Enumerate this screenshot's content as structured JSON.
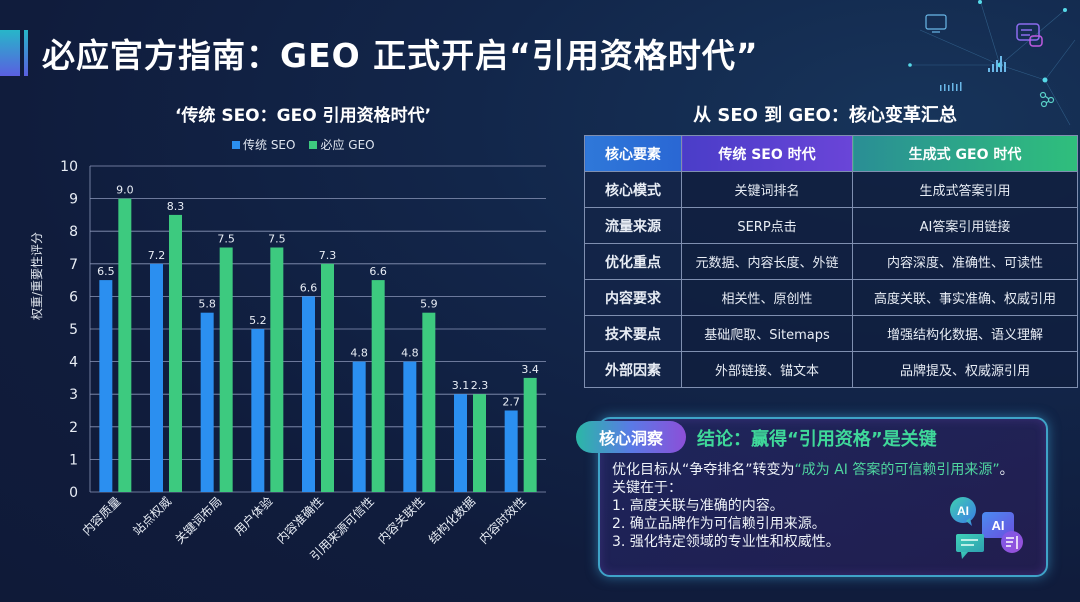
{
  "page": {
    "title": "必应官方指南：GEO 正式开启“引用资格时代”"
  },
  "chart_data": {
    "type": "bar",
    "title": "‘传统 SEO：GEO 引用资格时代’",
    "xlabel": "",
    "ylabel": "权重/重要性评分",
    "ylim": [
      0,
      10
    ],
    "yticks": [
      0,
      1,
      2,
      3,
      4,
      5,
      6,
      7,
      8,
      9,
      10
    ],
    "grid": true,
    "legend_position": "top",
    "categories": [
      "内容质量",
      "站点权威",
      "关键词布局",
      "用户体验",
      "内容准确性",
      "引用来源可信性",
      "内容关联性",
      "结构化数据",
      "内容时效性"
    ],
    "series": [
      {
        "name": "传统 SEO",
        "color": "#2b8ff0",
        "values": [
          6.5,
          7.2,
          5.8,
          5.2,
          6.6,
          4.8,
          4.8,
          3.1,
          2.7
        ],
        "drawn_heights": [
          6.5,
          7.0,
          5.5,
          5.0,
          6.0,
          4.0,
          4.0,
          3.0,
          2.5
        ]
      },
      {
        "name": "必应 GEO",
        "color": "#3dca7f",
        "values": [
          9.0,
          8.3,
          7.5,
          7.5,
          7.3,
          6.6,
          5.9,
          2.3,
          3.4
        ],
        "drawn_heights": [
          9.0,
          8.5,
          7.5,
          7.5,
          7.0,
          6.5,
          5.5,
          3.0,
          3.5
        ]
      }
    ],
    "data_labels": [
      [
        "6.5",
        "9.0"
      ],
      [
        "7.2",
        "8.3"
      ],
      [
        "5.8",
        "7.5"
      ],
      [
        "5.2",
        "7.5"
      ],
      [
        "6.6",
        "7.3"
      ],
      [
        "4.8",
        "6.6"
      ],
      [
        "4.8",
        "5.9"
      ],
      [
        "3.1",
        "2.3"
      ],
      [
        "2.7",
        "3.4"
      ]
    ]
  },
  "table": {
    "title": "从 SEO 到 GEO：核心变革汇总",
    "headers": [
      "核心要素",
      "传统 SEO 时代",
      "生成式 GEO 时代"
    ],
    "rows": [
      [
        "核心模式",
        "关键词排名",
        "生成式答案引用"
      ],
      [
        "流量来源",
        "SERP点击",
        "AI答案引用链接"
      ],
      [
        "优化重点",
        "元数据、内容长度、外链",
        "内容深度、准确性、可读性"
      ],
      [
        "内容要求",
        "相关性、原创性",
        "高度关联、事实准确、权威引用"
      ],
      [
        "技术要点",
        "基础爬取、Sitemaps",
        "增强结构化数据、语义理解"
      ],
      [
        "外部因素",
        "外部链接、锚文本",
        "品牌提及、权威源引用"
      ]
    ]
  },
  "insight": {
    "badge": "核心洞察",
    "title": "结论：赢得“引用资格”是关键",
    "intro_a": "优化目标从“争夺排名”转变为",
    "intro_highlight": "“成为 AI 答案的可信赖引用来源”",
    "intro_b": "。关键在于：",
    "points": [
      "1.   高度关联与准确的内容。",
      "2.   确立品牌作为可信赖引用来源。",
      "3.   强化特定领域的专业性和权威性。"
    ],
    "icon_labels": [
      "AI",
      "AI"
    ]
  },
  "icons": {
    "title_accent": "title-accent-bar",
    "deco": [
      "monitor-icon",
      "chat-icon",
      "bar-chart-icon",
      "network-icon"
    ],
    "ai": [
      "ai-chat-bubble-icon",
      "ai-bubble-icon",
      "message-icon",
      "document-icon"
    ]
  }
}
